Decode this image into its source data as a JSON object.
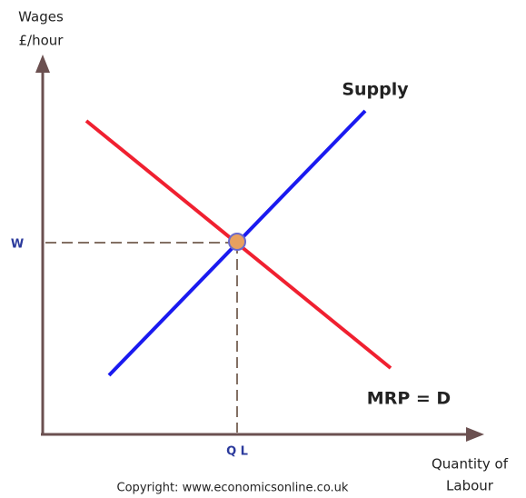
{
  "y_axis_label": [
    "Wages",
    "£/hour"
  ],
  "x_axis_label": [
    "Quantity of",
    "Labour"
  ],
  "supply_label": "Supply",
  "demand_label": "MRP = D",
  "wage_label": "W",
  "quantity_label": "Q L",
  "copyright": "Copyright: www.economicsonline.co.uk"
}
